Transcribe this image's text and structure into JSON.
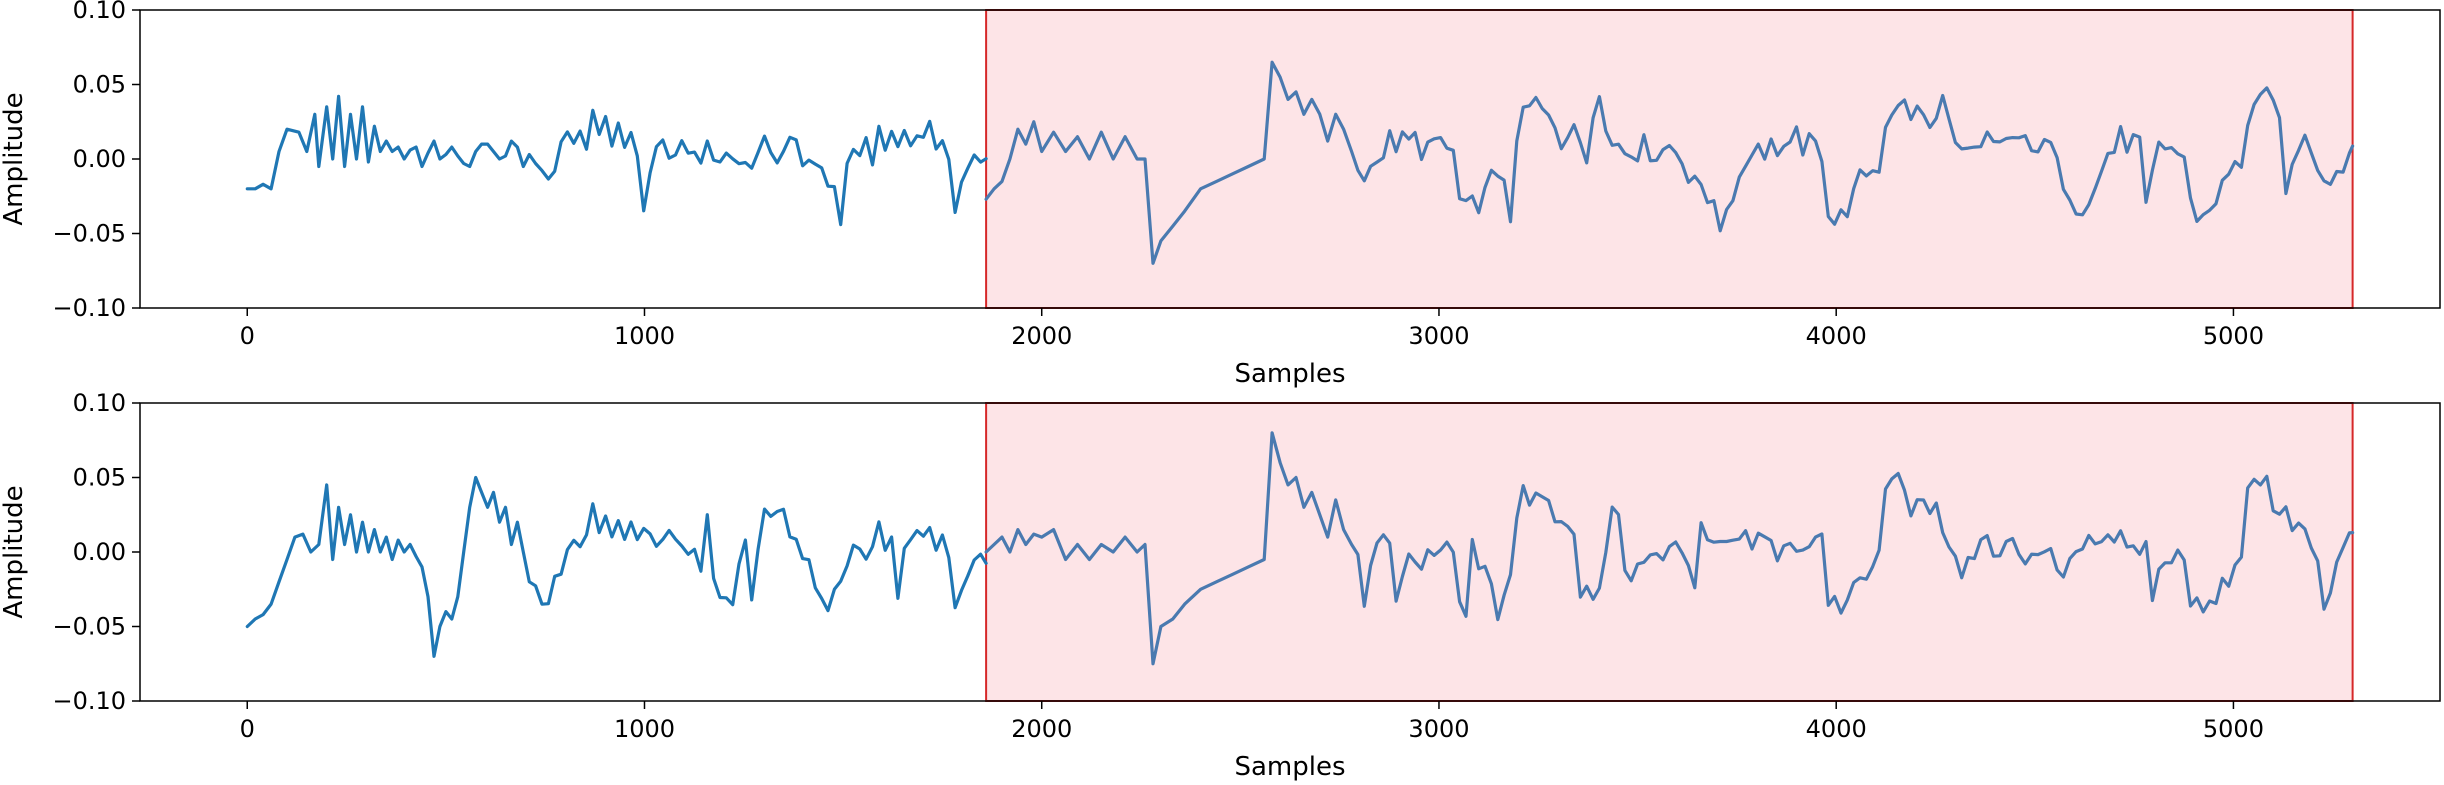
{
  "chart_data": [
    {
      "type": "line",
      "title": "",
      "xlabel": "Samples",
      "ylabel": "Amplitude",
      "xlim": [
        -270,
        5520
      ],
      "ylim": [
        -0.1,
        0.1
      ],
      "xticks": [
        0,
        1000,
        2000,
        3000,
        4000,
        5000
      ],
      "xtick_labels": [
        "0",
        "1000",
        "2000",
        "3000",
        "4000",
        "5000"
      ],
      "yticks": [
        -0.1,
        -0.05,
        0.0,
        0.05,
        0.1
      ],
      "ytick_labels": [
        "−0.10",
        "−0.05",
        "0.00",
        "0.05",
        "0.10"
      ],
      "grid": false,
      "highlight_region": {
        "x_start": 1860,
        "x_end": 5300,
        "fill": "#fde4e7",
        "edge": "#d62728"
      },
      "series": [
        {
          "color": "#1f77b4",
          "segment": [
            0,
            1860
          ],
          "points": [
            [
              0,
              -0.02
            ],
            [
              20,
              -0.02
            ],
            [
              40,
              -0.017
            ],
            [
              60,
              -0.02
            ],
            [
              80,
              0.005
            ],
            [
              100,
              0.02
            ],
            [
              130,
              0.018
            ],
            [
              150,
              0.005
            ],
            [
              170,
              0.03
            ],
            [
              180,
              -0.005
            ],
            [
              200,
              0.035
            ],
            [
              215,
              0.0
            ],
            [
              230,
              0.042
            ],
            [
              245,
              -0.005
            ],
            [
              260,
              0.03
            ],
            [
              275,
              0.0
            ],
            [
              290,
              0.035
            ],
            [
              305,
              -0.002
            ],
            [
              320,
              0.022
            ],
            [
              335,
              0.005
            ],
            [
              350,
              0.012
            ],
            [
              365,
              0.005
            ],
            [
              380,
              0.008
            ],
            [
              395,
              0.0
            ],
            [
              410,
              0.006
            ],
            [
              425,
              0.008
            ],
            [
              440,
              -0.005
            ],
            [
              455,
              0.004
            ],
            [
              470,
              0.012
            ],
            [
              485,
              0.0
            ],
            [
              500,
              0.003
            ],
            [
              515,
              0.008
            ],
            [
              530,
              0.002
            ],
            [
              545,
              -0.003
            ],
            [
              560,
              -0.005
            ],
            [
              575,
              0.005
            ],
            [
              590,
              0.01
            ],
            [
              605,
              0.01
            ],
            [
              620,
              0.005
            ],
            [
              635,
              0.0
            ],
            [
              650,
              0.002
            ],
            [
              665,
              0.012
            ],
            [
              680,
              0.008
            ],
            [
              695,
              -0.005
            ],
            [
              710,
              0.003
            ]
          ]
        },
        {
          "color": "#4a7ab0",
          "segment": [
            1860,
            5300
          ],
          "points": [
            [
              1860,
              -0.027
            ],
            [
              1880,
              -0.02
            ],
            [
              1900,
              -0.015
            ],
            [
              1920,
              0.0
            ],
            [
              1940,
              0.02
            ],
            [
              1960,
              0.01
            ],
            [
              1980,
              0.025
            ],
            [
              2000,
              0.005
            ],
            [
              2030,
              0.018
            ],
            [
              2060,
              0.005
            ],
            [
              2090,
              0.015
            ],
            [
              2120,
              0.0
            ],
            [
              2150,
              0.018
            ],
            [
              2180,
              0.0
            ],
            [
              2210,
              0.015
            ],
            [
              2240,
              0.0
            ],
            [
              2260,
              0.0
            ],
            [
              2280,
              -0.07
            ],
            [
              2300,
              -0.055
            ],
            [
              2330,
              -0.045
            ],
            [
              2360,
              -0.035
            ],
            [
              2400,
              -0.02
            ],
            [
              2440,
              -0.015
            ],
            [
              2480,
              -0.01
            ],
            [
              2520,
              -0.005
            ],
            [
              2560,
              0.0
            ],
            [
              2580,
              0.065
            ],
            [
              2600,
              0.055
            ],
            [
              2620,
              0.04
            ],
            [
              2640,
              0.045
            ],
            [
              2660,
              0.03
            ],
            [
              2680,
              0.04
            ],
            [
              2700,
              0.03
            ],
            [
              2720,
              0.012
            ],
            [
              2740,
              0.03
            ],
            [
              2760,
              0.02
            ],
            [
              2780,
              0.005
            ]
          ]
        }
      ]
    },
    {
      "type": "line",
      "title": "",
      "xlabel": "Samples",
      "ylabel": "Amplitude",
      "xlim": [
        -270,
        5520
      ],
      "ylim": [
        -0.1,
        0.1
      ],
      "xticks": [
        0,
        1000,
        2000,
        3000,
        4000,
        5000
      ],
      "xtick_labels": [
        "0",
        "1000",
        "2000",
        "3000",
        "4000",
        "5000"
      ],
      "yticks": [
        -0.1,
        -0.05,
        0.0,
        0.05,
        0.1
      ],
      "ytick_labels": [
        "−0.10",
        "−0.05",
        "0.00",
        "0.05",
        "0.10"
      ],
      "grid": false,
      "highlight_region": {
        "x_start": 1860,
        "x_end": 5300,
        "fill": "#fde4e7",
        "edge": "#d62728"
      },
      "series": [
        {
          "color": "#1f77b4",
          "segment": [
            0,
            1860
          ],
          "points": [
            [
              0,
              -0.05
            ],
            [
              20,
              -0.045
            ],
            [
              40,
              -0.042
            ],
            [
              60,
              -0.035
            ],
            [
              80,
              -0.02
            ],
            [
              100,
              -0.005
            ],
            [
              120,
              0.01
            ],
            [
              140,
              0.012
            ],
            [
              160,
              0.0
            ],
            [
              180,
              0.005
            ],
            [
              200,
              0.045
            ],
            [
              215,
              -0.005
            ],
            [
              230,
              0.03
            ],
            [
              245,
              0.005
            ],
            [
              260,
              0.025
            ],
            [
              275,
              0.0
            ],
            [
              290,
              0.02
            ],
            [
              305,
              0.0
            ],
            [
              320,
              0.015
            ],
            [
              335,
              0.0
            ],
            [
              350,
              0.01
            ],
            [
              365,
              -0.005
            ],
            [
              380,
              0.008
            ],
            [
              395,
              0.0
            ],
            [
              410,
              0.005
            ],
            [
              425,
              -0.003
            ],
            [
              440,
              -0.01
            ],
            [
              455,
              -0.03
            ],
            [
              470,
              -0.07
            ],
            [
              485,
              -0.05
            ],
            [
              500,
              -0.04
            ],
            [
              515,
              -0.045
            ],
            [
              530,
              -0.03
            ],
            [
              545,
              0.0
            ],
            [
              560,
              0.03
            ],
            [
              575,
              0.05
            ],
            [
              590,
              0.04
            ],
            [
              605,
              0.03
            ],
            [
              620,
              0.04
            ],
            [
              635,
              0.02
            ],
            [
              650,
              0.03
            ],
            [
              665,
              0.005
            ],
            [
              680,
              0.02
            ],
            [
              695,
              0.0
            ],
            [
              710,
              -0.02
            ]
          ]
        },
        {
          "color": "#4a7ab0",
          "segment": [
            1860,
            5300
          ],
          "points": [
            [
              1860,
              0.0
            ],
            [
              1880,
              0.005
            ],
            [
              1900,
              0.01
            ],
            [
              1920,
              0.0
            ],
            [
              1940,
              0.015
            ],
            [
              1960,
              0.005
            ],
            [
              1980,
              0.012
            ],
            [
              2000,
              0.01
            ],
            [
              2030,
              0.015
            ],
            [
              2060,
              -0.005
            ],
            [
              2090,
              0.005
            ],
            [
              2120,
              -0.005
            ],
            [
              2150,
              0.005
            ],
            [
              2180,
              0.0
            ],
            [
              2210,
              0.01
            ],
            [
              2240,
              0.0
            ],
            [
              2260,
              0.005
            ],
            [
              2280,
              -0.075
            ],
            [
              2300,
              -0.05
            ],
            [
              2330,
              -0.045
            ],
            [
              2360,
              -0.035
            ],
            [
              2400,
              -0.025
            ],
            [
              2440,
              -0.02
            ],
            [
              2480,
              -0.015
            ],
            [
              2520,
              -0.01
            ],
            [
              2560,
              -0.005
            ],
            [
              2580,
              0.08
            ],
            [
              2600,
              0.06
            ],
            [
              2620,
              0.045
            ],
            [
              2640,
              0.05
            ],
            [
              2660,
              0.03
            ],
            [
              2680,
              0.04
            ],
            [
              2700,
              0.025
            ],
            [
              2720,
              0.01
            ],
            [
              2740,
              0.035
            ],
            [
              2760,
              0.015
            ],
            [
              2780,
              0.005
            ]
          ]
        }
      ]
    }
  ]
}
